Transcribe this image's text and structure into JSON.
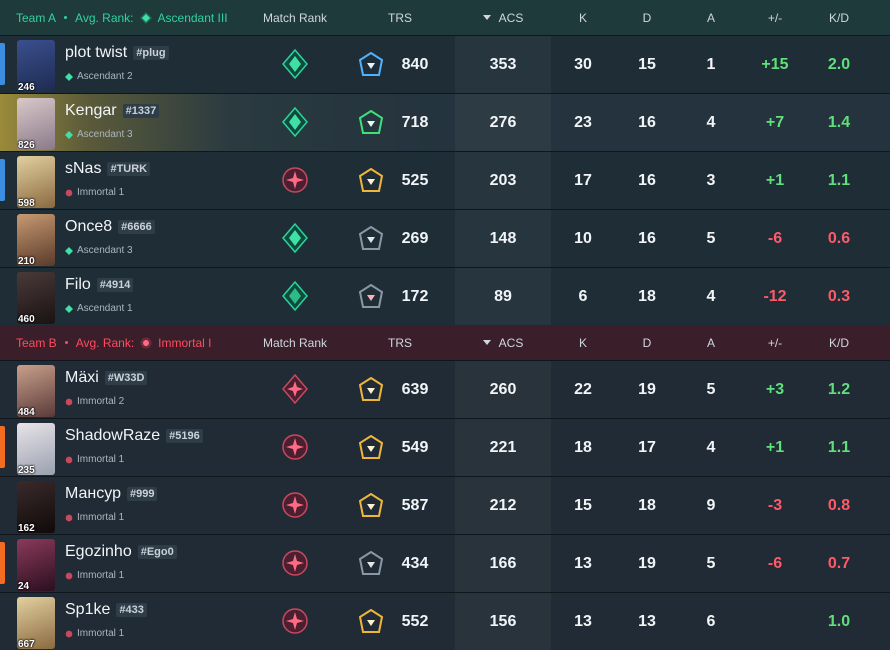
{
  "colors": {
    "team_a_accent": "#2fd2a3",
    "team_b_accent": "#ff4b5f",
    "positive": "#5fe07a",
    "negative": "#ff5a6a"
  },
  "teamA": {
    "label": "Team A",
    "avg_rank_label": "Avg. Rank:",
    "avg_rank": "Ascendant III",
    "headers": {
      "match_rank": "Match Rank",
      "trs": "TRS",
      "acs": "ACS",
      "k": "K",
      "d": "D",
      "a": "A",
      "pm": "+/-",
      "kd": "K/D"
    }
  },
  "teamB": {
    "label": "Team B",
    "avg_rank_label": "Avg. Rank:",
    "avg_rank": "Immortal I",
    "headers": {
      "match_rank": "Match Rank",
      "trs": "TRS",
      "acs": "ACS",
      "k": "K",
      "d": "D",
      "a": "A",
      "pm": "+/-",
      "kd": "K/D"
    }
  },
  "playersA": [
    {
      "name": "plot twist",
      "tag": "#plug",
      "level": "246",
      "rank": "Ascendant 2",
      "trs": "840",
      "acs": "353",
      "k": "30",
      "d": "15",
      "a": "1",
      "pm": "+15",
      "kd": "2.0"
    },
    {
      "name": "Kengar",
      "tag": "#1337",
      "level": "826",
      "rank": "Ascendant 3",
      "trs": "718",
      "acs": "276",
      "k": "23",
      "d": "16",
      "a": "4",
      "pm": "+7",
      "kd": "1.4"
    },
    {
      "name": "sNas",
      "tag": "#TURK",
      "level": "598",
      "rank": "Immortal 1",
      "trs": "525",
      "acs": "203",
      "k": "17",
      "d": "16",
      "a": "3",
      "pm": "+1",
      "kd": "1.1"
    },
    {
      "name": "Once8",
      "tag": "#6666",
      "level": "210",
      "rank": "Ascendant 3",
      "trs": "269",
      "acs": "148",
      "k": "10",
      "d": "16",
      "a": "5",
      "pm": "-6",
      "kd": "0.6"
    },
    {
      "name": "Filo",
      "tag": "#4914",
      "level": "460",
      "rank": "Ascendant 1",
      "trs": "172",
      "acs": "89",
      "k": "6",
      "d": "18",
      "a": "4",
      "pm": "-12",
      "kd": "0.3"
    }
  ],
  "playersB": [
    {
      "name": "Mäxi",
      "tag": "#W33D",
      "level": "484",
      "rank": "Immortal 2",
      "trs": "639",
      "acs": "260",
      "k": "22",
      "d": "19",
      "a": "5",
      "pm": "+3",
      "kd": "1.2"
    },
    {
      "name": "ShadowRaze",
      "tag": "#5196",
      "level": "235",
      "rank": "Immortal 1",
      "trs": "549",
      "acs": "221",
      "k": "18",
      "d": "17",
      "a": "4",
      "pm": "+1",
      "kd": "1.1"
    },
    {
      "name": "Мансур",
      "tag": "#999",
      "level": "162",
      "rank": "Immortal 1",
      "trs": "587",
      "acs": "212",
      "k": "15",
      "d": "18",
      "a": "9",
      "pm": "-3",
      "kd": "0.8"
    },
    {
      "name": "Egozinho",
      "tag": "#Ego0",
      "level": "24",
      "rank": "Immortal 1",
      "trs": "434",
      "acs": "166",
      "k": "13",
      "d": "19",
      "a": "5",
      "pm": "-6",
      "kd": "0.7"
    },
    {
      "name": "Sp1ke",
      "tag": "#433",
      "level": "667",
      "rank": "Immortal 1",
      "trs": "552",
      "acs": "156",
      "k": "13",
      "d": "13",
      "a": "6",
      "pm": "",
      "kd": "1.0"
    }
  ]
}
